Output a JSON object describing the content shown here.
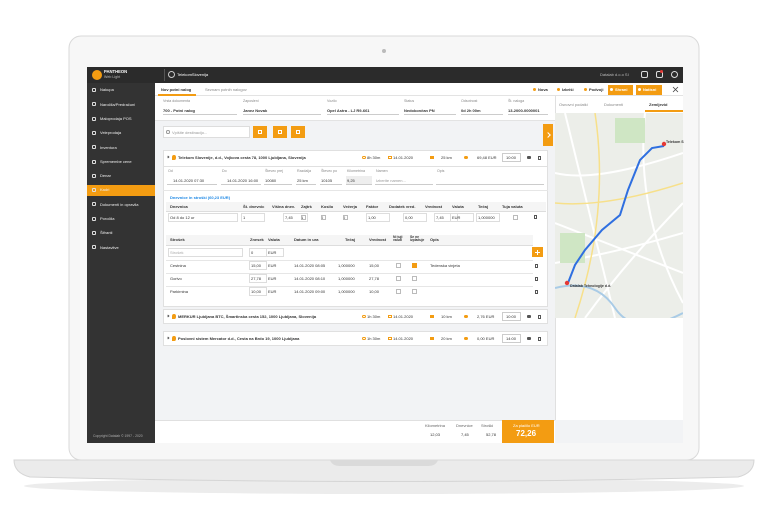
{
  "topbar": {
    "brand": "PANTHEON",
    "brand_sub": "Web Light",
    "company": "TelekomSlovenija",
    "user": "Datalab d.o.o SI"
  },
  "sidebar": {
    "items": [
      "Nakupa",
      "Naročila/Predračuni",
      "Maloprodaja POS",
      "Veleprodaja",
      "Inventura",
      "Spremembe cene",
      "Denar",
      "Kadri",
      "Dokumenti in opravila",
      "Poročila",
      "Šifranti",
      "Nastavitve"
    ],
    "copyright": "Copyright Datalab © 1997 - 2020"
  },
  "tabs": [
    "Nov potni nalog",
    "Seznam potnih nalogov"
  ],
  "actions": [
    "Nova",
    "Izbriši",
    "Podvoji",
    "Shrani",
    "Natisni"
  ],
  "form": [
    {
      "label": "Vrsta dokumenta",
      "value": "700 - Potni nalog"
    },
    {
      "label": "Zaposleni",
      "value": "Janez Novak"
    },
    {
      "label": "Vozilo",
      "value": "Opel Astra - LJ R9-661"
    },
    {
      "label": "Status",
      "value": "Nedokončan PN"
    },
    {
      "label": "Odsotnost",
      "value": "0d 2h 00m"
    },
    {
      "label": "Št. naloga",
      "value": "13-2000-0000001"
    }
  ],
  "side_tabs": [
    "Osnovni podatki",
    "Dokumenti",
    "Zemljevid"
  ],
  "search_placeholder": "Vpišite destinacijo...",
  "destinations": [
    {
      "address": "Telekom Slovenije, d.d., Vojkova cesta 78, 1000 Ljubljana, Slovenija",
      "duration": "8h 30m",
      "date": "14.01.2020",
      "distance": "25 km",
      "amount": "69,48 EUR",
      "time": "10:00"
    },
    {
      "address": "MERKUR Ljubljana BTC, Šmartinska cesta 152, 1000 Ljubljana, Slovenija",
      "duration": "1h 30m",
      "date": "14.01.2020",
      "distance": "10 km",
      "amount": "2,76 EUR",
      "time": "10:00"
    },
    {
      "address": "Poslovni sistem Mercator d.d., Cesta na Brdo 19, 1000 Ljubljana",
      "duration": "1h 30m",
      "date": "14.01.2020",
      "distance": "20 km",
      "amount": "0,00 EUR",
      "time": "14:00"
    }
  ],
  "detail": {
    "labels": [
      "Od",
      "Do",
      "Števec prej",
      "Razdalja",
      "Števec po",
      "Kilometrina",
      "Namen",
      "Opis"
    ],
    "values": [
      "14.01.2020 07:30",
      "14.01.2020 16:00",
      "10080",
      "25 km",
      "10105",
      "9,25",
      "Izberite namen..."
    ]
  },
  "allowance": {
    "title": "Dnevnice in stroški (60,23 EUR)",
    "headers": [
      "Dnevnica",
      "Št. dnevnic",
      "Višina dnev.",
      "Zajtrk",
      "Kosilo",
      "Večerja",
      "Faktor",
      "Dodatek vred.",
      "Vrednost",
      "Valuta",
      "Tečaj",
      "Tuja valuta"
    ],
    "row": [
      "Od 8 do 12 ur",
      "1",
      "7,45",
      "1",
      "0",
      "0",
      "1,00",
      "0,00",
      "7,45",
      "EUR",
      "1,000000"
    ]
  },
  "costs": {
    "headers": [
      "Strošek",
      "Znesek",
      "Valuta",
      "Datum in ura",
      "Tečaj",
      "Vrednost",
      "Ni tuji valuti",
      "Se ne izplačuje",
      "Opis"
    ],
    "placeholder_row": [
      "Strošek",
      "0",
      "EUR"
    ],
    "rows": [
      [
        "Cestnina",
        "15,00",
        "EUR",
        "14.01.2020 08:05",
        "1,000000",
        "15,00",
        "Tedenska vinjeta"
      ],
      [
        "Gorivo",
        "27,78",
        "EUR",
        "14.01.2020 08:10",
        "1,000000",
        "27,78"
      ],
      [
        "Parkirnina",
        "10,00",
        "EUR",
        "14.01.2020 09:00",
        "1,000000",
        "10,00"
      ]
    ]
  },
  "summary": [
    {
      "label": "Kilometrina",
      "value": "12,03"
    },
    {
      "label": "Dnevnice",
      "value": "7,45"
    },
    {
      "label": "Stroški",
      "value": "52,78"
    }
  ],
  "total": {
    "label": "Za plačilo EUR",
    "value": "72,26"
  },
  "map": {
    "labels": [
      "Telekom S",
      "Datalab Tehnologije d.d."
    ]
  }
}
